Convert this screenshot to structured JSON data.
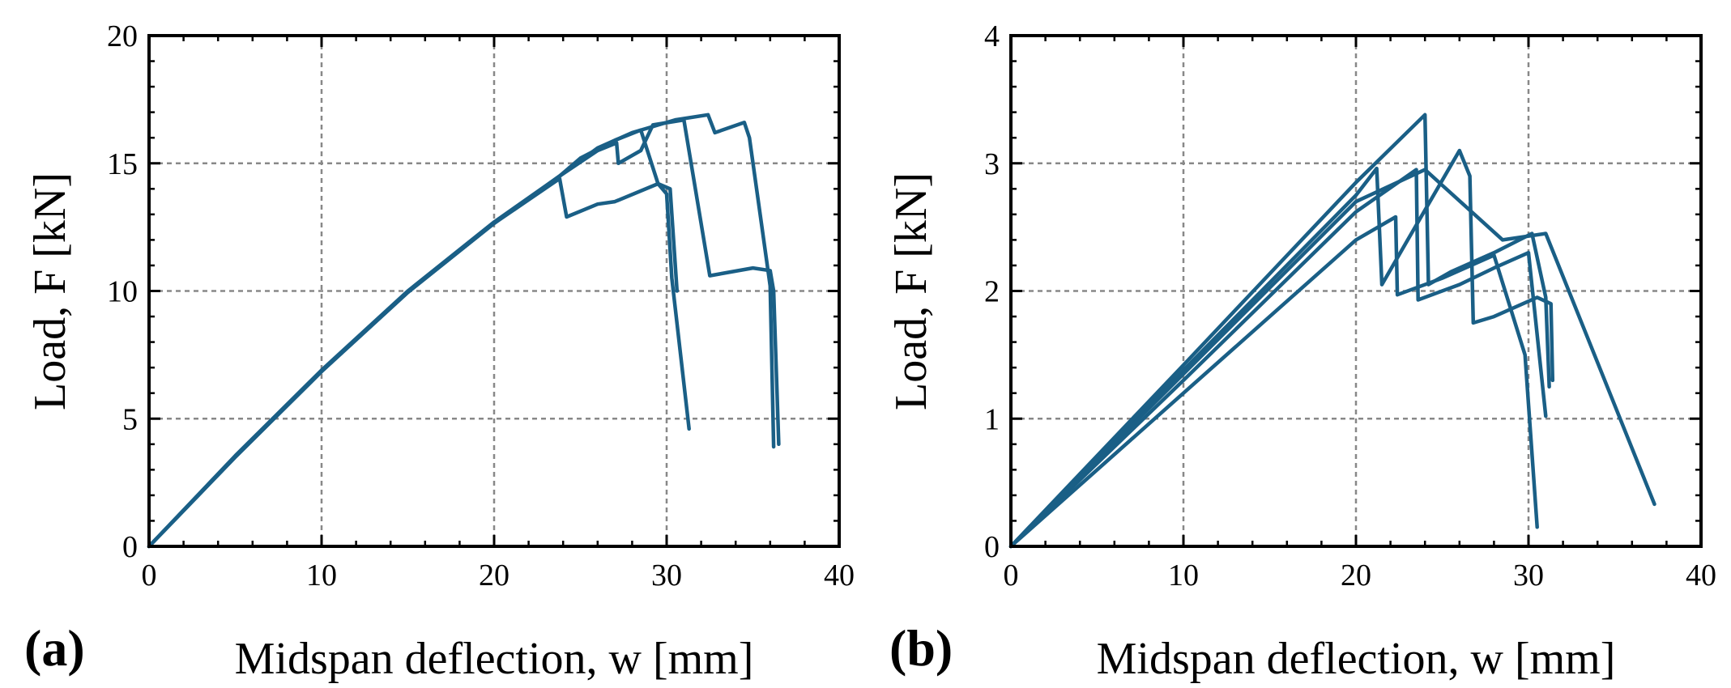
{
  "chart_data": [
    {
      "type": "line",
      "panel_label": "(a)",
      "xlabel": "Midspan deflection, w [mm]",
      "ylabel": "Load, F [kN]",
      "xlim": [
        0,
        40
      ],
      "ylim": [
        0,
        20
      ],
      "xticks": [
        "0",
        "10",
        "20",
        "30",
        "40"
      ],
      "yticks": [
        "0",
        "5",
        "10",
        "15",
        "20"
      ],
      "grid": true,
      "line_color": "#1a5f86",
      "series": [
        {
          "x": [
            0,
            5,
            10,
            15,
            20,
            23.8,
            25,
            27,
            28.5,
            29.5,
            30,
            30.3,
            31.3
          ],
          "y": [
            0,
            3.55,
            6.9,
            10.0,
            12.7,
            14.5,
            15.2,
            15.9,
            16.3,
            14.2,
            13.8,
            10.5,
            4.6
          ]
        },
        {
          "x": [
            0,
            5,
            10,
            15,
            20,
            23.8,
            24.2,
            26,
            27,
            29.5,
            30.2,
            30.6
          ],
          "y": [
            0,
            3.5,
            6.85,
            9.95,
            12.65,
            14.4,
            12.9,
            13.4,
            13.5,
            14.2,
            14.0,
            10.0
          ]
        },
        {
          "x": [
            0,
            5,
            10,
            15,
            20,
            23.8,
            26,
            27.1,
            27.2,
            28.5,
            29.2,
            31.0,
            32.5,
            35.0,
            36.0,
            36.2,
            36.5
          ],
          "y": [
            0,
            3.5,
            6.85,
            9.95,
            12.65,
            14.5,
            15.5,
            15.8,
            15.0,
            15.5,
            16.5,
            16.7,
            10.6,
            10.9,
            10.8,
            10.0,
            4.0
          ]
        },
        {
          "x": [
            0,
            5,
            10,
            15,
            20,
            23.8,
            26,
            28,
            29,
            30.5,
            32.4,
            32.8,
            34.5,
            34.8,
            36.0,
            36.2
          ],
          "y": [
            0,
            3.5,
            6.85,
            9.95,
            12.65,
            14.5,
            15.6,
            16.2,
            16.4,
            16.7,
            16.9,
            16.2,
            16.6,
            16.0,
            10.2,
            3.9
          ]
        }
      ]
    },
    {
      "type": "line",
      "panel_label": "(b)",
      "xlabel": "Midspan deflection, w [mm]",
      "ylabel": "Load, F [kN]",
      "xlim": [
        0,
        40
      ],
      "ylim": [
        0,
        4
      ],
      "xticks": [
        "0",
        "10",
        "20",
        "30",
        "40"
      ],
      "yticks": [
        "0",
        "1",
        "2",
        "3",
        "4"
      ],
      "grid": true,
      "line_color": "#1a5f86",
      "series": [
        {
          "x": [
            0,
            10,
            20,
            24.0,
            24.2,
            25.5,
            28.0,
            30.2,
            31.0,
            31.2
          ],
          "y": [
            0,
            1.42,
            2.85,
            3.38,
            2.05,
            2.15,
            2.3,
            2.45,
            1.95,
            1.25
          ]
        },
        {
          "x": [
            0,
            10,
            20,
            23.5,
            23.6,
            26.0,
            28.0,
            30.0,
            31.0
          ],
          "y": [
            0,
            1.3,
            2.62,
            2.95,
            1.93,
            2.05,
            2.18,
            2.3,
            1.02
          ]
        },
        {
          "x": [
            0,
            10,
            20,
            21.2,
            21.5,
            23.0,
            26.0,
            26.6,
            26.8,
            28.0,
            30.5,
            31.3,
            31.4
          ],
          "y": [
            0,
            1.38,
            2.75,
            2.96,
            2.05,
            2.4,
            3.1,
            2.9,
            1.75,
            1.8,
            1.95,
            1.9,
            1.3
          ]
        },
        {
          "x": [
            0,
            10,
            20,
            22.3,
            22.4,
            25.0,
            28.0,
            29.8,
            30.5
          ],
          "y": [
            0,
            1.2,
            2.4,
            2.58,
            1.97,
            2.1,
            2.28,
            1.5,
            0.15
          ]
        },
        {
          "x": [
            0,
            10,
            20,
            24.0,
            28.5,
            31.0,
            37.3
          ],
          "y": [
            0,
            1.35,
            2.7,
            2.95,
            2.4,
            2.45,
            0.33
          ]
        }
      ]
    }
  ]
}
